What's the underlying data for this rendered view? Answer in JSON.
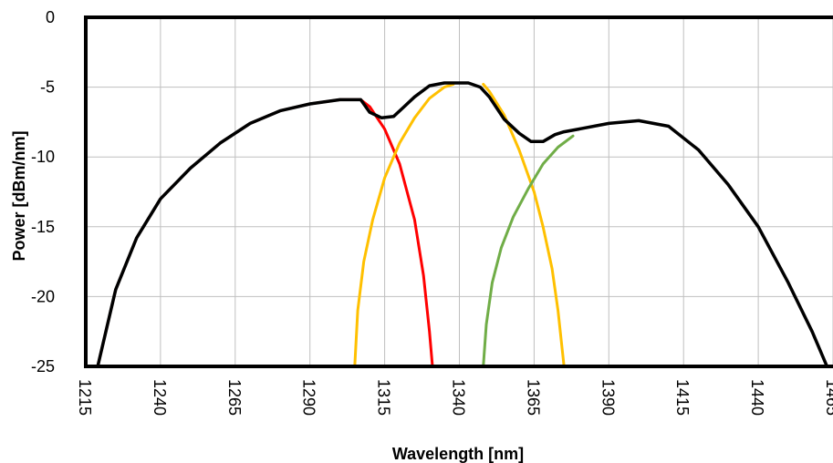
{
  "chart_data": {
    "type": "line",
    "title": "",
    "xlabel": "Wavelength [nm]",
    "ylabel": "Power [dBm/nm]",
    "xlim": [
      1215,
      1465
    ],
    "ylim": [
      -25,
      0
    ],
    "x_ticks": [
      "1215",
      "1240",
      "1265",
      "1290",
      "1315",
      "1340",
      "1365",
      "1390",
      "1415",
      "1440",
      "1465"
    ],
    "y_ticks": [
      "0",
      "-5",
      "-10",
      "-15",
      "-20",
      "-25"
    ],
    "x_tick_values": [
      1215,
      1240,
      1265,
      1290,
      1315,
      1340,
      1365,
      1390,
      1415,
      1440,
      1465
    ],
    "y_tick_values": [
      0,
      -5,
      -10,
      -15,
      -20,
      -25
    ],
    "grid": true,
    "legend": "none",
    "series": [
      {
        "color": "#ff0000",
        "x": [
          1219,
          1225,
          1232,
          1240,
          1250,
          1260,
          1270,
          1280,
          1290,
          1300,
          1307,
          1310,
          1315,
          1320,
          1325,
          1328,
          1330,
          1331
        ],
        "y": [
          -25,
          -19.5,
          -15.8,
          -13.0,
          -10.8,
          -9.0,
          -7.6,
          -6.7,
          -6.2,
          -5.9,
          -5.9,
          -6.4,
          -8.0,
          -10.5,
          -14.5,
          -18.5,
          -22.5,
          -25
        ]
      },
      {
        "color": "#ffc000",
        "x": [
          1305,
          1306,
          1308,
          1311,
          1315,
          1320,
          1325,
          1330,
          1335,
          1338
        ],
        "y": [
          -25,
          -21,
          -17.5,
          -14.5,
          -11.5,
          -9.0,
          -7.2,
          -5.8,
          -5.0,
          -4.8
        ]
      },
      {
        "color": "#ffc000",
        "x": [
          1348,
          1350,
          1355,
          1360,
          1365,
          1368,
          1371,
          1373,
          1374,
          1375
        ],
        "y": [
          -4.8,
          -5.3,
          -7.0,
          -9.5,
          -12.5,
          -15.0,
          -18.0,
          -21.0,
          -23.0,
          -25
        ]
      },
      {
        "color": "#70ad47",
        "x": [
          1348,
          1349,
          1351,
          1354,
          1358,
          1363,
          1368,
          1373,
          1378
        ],
        "y": [
          -25,
          -22,
          -19,
          -16.5,
          -14.3,
          -12.3,
          -10.5,
          -9.3,
          -8.5
        ]
      },
      {
        "color": "#000000",
        "x": [
          1219,
          1225,
          1232,
          1240,
          1250,
          1260,
          1270,
          1280,
          1290,
          1300,
          1307,
          1310,
          1314,
          1318,
          1321,
          1325,
          1330,
          1335,
          1340,
          1343,
          1347,
          1350,
          1355,
          1360,
          1364,
          1368,
          1372,
          1375,
          1380,
          1390,
          1400,
          1410,
          1420,
          1430,
          1440,
          1450,
          1458,
          1463
        ],
        "y": [
          -25,
          -19.5,
          -15.8,
          -13.0,
          -10.8,
          -9.0,
          -7.6,
          -6.7,
          -6.2,
          -5.9,
          -5.9,
          -6.8,
          -7.2,
          -7.1,
          -6.5,
          -5.7,
          -4.9,
          -4.7,
          -4.7,
          -4.7,
          -5.0,
          -5.7,
          -7.3,
          -8.3,
          -8.9,
          -8.9,
          -8.4,
          -8.2,
          -8.0,
          -7.6,
          -7.4,
          -7.8,
          -9.5,
          -12.0,
          -15.0,
          -19.0,
          -22.5,
          -25
        ]
      }
    ]
  }
}
